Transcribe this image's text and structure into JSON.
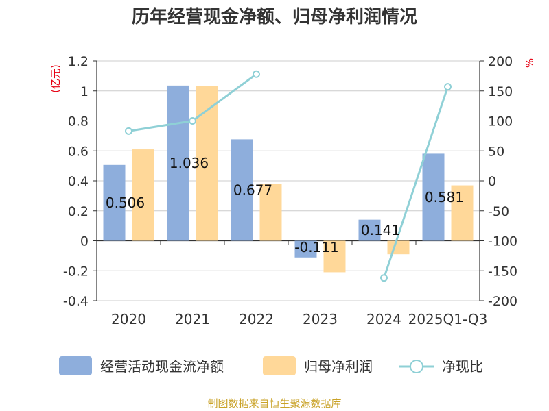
{
  "chart_data": {
    "type": "bar",
    "title": "历年经营现金净额、归母净利润情况",
    "categories": [
      "2020",
      "2021",
      "2022",
      "2023",
      "2024",
      "2025Q1-Q3"
    ],
    "series": [
      {
        "name": "经营活动现金流净额",
        "kind": "bar",
        "axis": "left",
        "color": "#8eaedc",
        "values": [
          0.506,
          1.036,
          0.677,
          -0.111,
          0.141,
          0.581
        ]
      },
      {
        "name": "归母净利润",
        "kind": "bar",
        "axis": "left",
        "color": "#ffd899",
        "values": [
          0.61,
          1.035,
          0.38,
          -0.21,
          -0.09,
          0.37
        ]
      },
      {
        "name": "净现比",
        "kind": "line",
        "axis": "right",
        "color": "#8fd0d6",
        "values": [
          83,
          100,
          178,
          null,
          -162,
          157
        ]
      }
    ],
    "data_labels": [
      "0.506",
      "1.036",
      "0.677",
      "-0.111",
      "0.141",
      "0.581"
    ],
    "y_left": {
      "label": "(亿元)",
      "min": -0.4,
      "max": 1.2,
      "ticks": [
        -0.4,
        -0.2,
        0,
        0.2,
        0.4,
        0.6,
        0.8,
        1,
        1.2
      ],
      "tick_labels": [
        "-0.4",
        "-0.2",
        "0",
        "0.2",
        "0.4",
        "0.6",
        "0.8",
        "1",
        "1.2"
      ]
    },
    "y_right": {
      "label": "%",
      "min": -200,
      "max": 200,
      "ticks": [
        -200,
        -150,
        -100,
        -50,
        0,
        50,
        100,
        150,
        200
      ],
      "tick_labels": [
        "-200",
        "-150",
        "-100",
        "-50",
        "0",
        "50",
        "100",
        "150",
        "200"
      ]
    },
    "grid": true,
    "legend_position": "bottom"
  },
  "source": "制图数据来自恒生聚源数据库",
  "colors": {
    "text": "#333333",
    "grid": "#cccccc",
    "axis_unit": "#e60012",
    "source": "#c9a227"
  }
}
